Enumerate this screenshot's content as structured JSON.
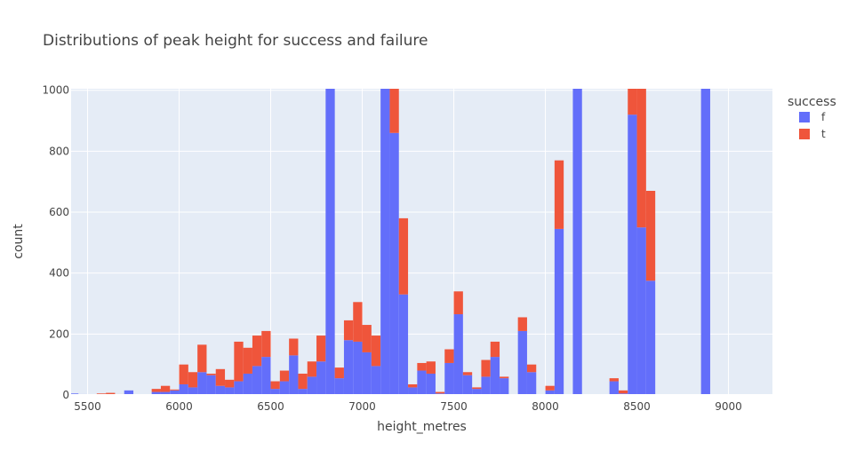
{
  "chart_data": {
    "type": "bar",
    "barmode": "stack",
    "title": "Distributions of peak height for success and failure",
    "xlabel": "height_metres",
    "ylabel": "count",
    "xlim": [
      5410,
      9240
    ],
    "ylim": [
      0,
      1005
    ],
    "xticks": [
      5500,
      6000,
      6500,
      7000,
      7500,
      8000,
      8500,
      9000
    ],
    "yticks": [
      0,
      200,
      400,
      600,
      800,
      1000
    ],
    "bin_width": 50,
    "grid": true,
    "legend": {
      "title": "success",
      "position": "right"
    },
    "x": [
      5400,
      5450,
      5550,
      5600,
      5650,
      5700,
      5850,
      5900,
      5950,
      6000,
      6050,
      6100,
      6150,
      6200,
      6250,
      6300,
      6350,
      6400,
      6450,
      6500,
      6550,
      6600,
      6650,
      6700,
      6750,
      6800,
      6850,
      6900,
      6950,
      7000,
      7050,
      7100,
      7150,
      7200,
      7250,
      7300,
      7350,
      7400,
      7450,
      7500,
      7550,
      7600,
      7650,
      7700,
      7750,
      7850,
      7900,
      8000,
      8050,
      8150,
      8350,
      8400,
      8450,
      8500,
      8550,
      8850
    ],
    "series": [
      {
        "name": "f",
        "color": "#636efa",
        "values": [
          5,
          3,
          2,
          2,
          1,
          15,
          10,
          10,
          15,
          35,
          25,
          75,
          65,
          30,
          25,
          45,
          70,
          95,
          125,
          20,
          45,
          130,
          20,
          60,
          110,
          1005,
          55,
          180,
          175,
          140,
          95,
          1005,
          860,
          330,
          25,
          80,
          70,
          5,
          105,
          265,
          65,
          20,
          60,
          125,
          55,
          210,
          75,
          15,
          545,
          1005,
          45,
          5,
          920,
          550,
          375,
          1005
        ]
      },
      {
        "name": "t",
        "color": "#ef553b",
        "values": [
          0,
          0,
          3,
          5,
          2,
          0,
          10,
          20,
          3,
          65,
          50,
          90,
          5,
          55,
          25,
          130,
          85,
          100,
          85,
          25,
          35,
          55,
          50,
          50,
          85,
          0,
          35,
          65,
          130,
          90,
          100,
          0,
          160,
          250,
          10,
          25,
          40,
          5,
          45,
          75,
          10,
          5,
          55,
          50,
          5,
          45,
          25,
          15,
          225,
          0,
          10,
          10,
          85,
          455,
          295,
          0
        ]
      }
    ]
  }
}
